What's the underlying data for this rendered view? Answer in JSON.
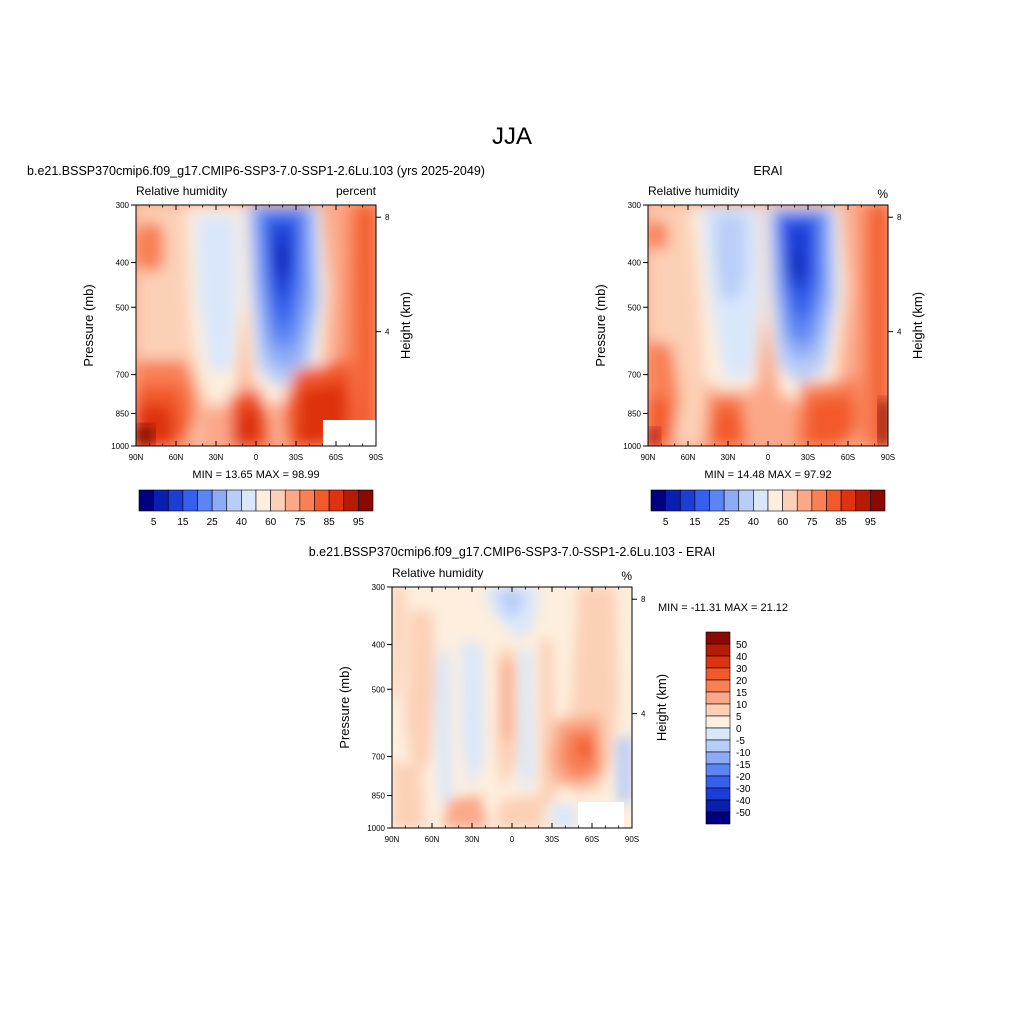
{
  "suptitle": "JJA",
  "x_ticks": [
    "90N",
    "60N",
    "30N",
    "0",
    "30S",
    "60S",
    "90S"
  ],
  "p_ticks": [
    "300",
    "400",
    "500",
    "700",
    "850",
    "1000"
  ],
  "h_ticks": [
    "8",
    "4"
  ],
  "ylabel_left": "Pressure (mb)",
  "ylabel_right": "Height (km)",
  "var_label": "Relative humidity",
  "abs_colorbar": {
    "colors": [
      "#00007f",
      "#0a1fb0",
      "#1a3ed6",
      "#3660ec",
      "#5b85f3",
      "#8caaf6",
      "#b8cdf8",
      "#d9e7fb",
      "#fdeedd",
      "#fcd0b6",
      "#fba889",
      "#f88054",
      "#f25a2c",
      "#de3311",
      "#b51c07",
      "#8a0a02"
    ],
    "labels": [
      "5",
      "15",
      "25",
      "40",
      "60",
      "75",
      "85",
      "95"
    ]
  },
  "diff_colorbar": {
    "colors": [
      "#00007f",
      "#0a1fb0",
      "#1a3ed6",
      "#3660ec",
      "#5b85f3",
      "#8caaf6",
      "#b8cdf8",
      "#d9e7fb",
      "#fdeedd",
      "#fcd0b6",
      "#fba889",
      "#f88054",
      "#f25a2c",
      "#de3311",
      "#b51c07",
      "#8a0a02"
    ],
    "labels": [
      "50",
      "40",
      "30",
      "20",
      "15",
      "10",
      "5",
      "0",
      "-5",
      "-10",
      "-15",
      "-20",
      "-30",
      "-40",
      "-50"
    ]
  },
  "chart_data": [
    {
      "type": "heatmap",
      "title": "b.e21.BSSP370cmip6.f09_g17.CMIP6-SSP3-7.0-SSP1-2.6Lu.103 (yrs 2025-2049)",
      "left_label": "Relative humidity",
      "units": "percent",
      "stats": "MIN =  13.65  MAX =  98.99",
      "min": 13.65,
      "max": 98.99,
      "x_axis": [
        "90N",
        "60N",
        "30N",
        "0",
        "30S",
        "60S",
        "90S"
      ],
      "y_axis_pressure_mb": [
        300,
        400,
        500,
        700,
        850,
        1000
      ],
      "y_axis_height_km": [
        8,
        4
      ]
    },
    {
      "type": "heatmap",
      "title": "ERAI",
      "left_label": "Relative humidity",
      "units": "%",
      "stats": "MIN =  14.48  MAX =  97.92",
      "min": 14.48,
      "max": 97.92,
      "x_axis": [
        "90N",
        "60N",
        "30N",
        "0",
        "30S",
        "60S",
        "90S"
      ],
      "y_axis_pressure_mb": [
        300,
        400,
        500,
        700,
        850,
        1000
      ],
      "y_axis_height_km": [
        8,
        4
      ]
    },
    {
      "type": "heatmap",
      "title": "b.e21.BSSP370cmip6.f09_g17.CMIP6-SSP3-7.0-SSP1-2.6Lu.103 - ERAI",
      "left_label": "Relative humidity",
      "units": "%",
      "stats": "MIN = -11.31  MAX =  21.12",
      "min": -11.31,
      "max": 21.12,
      "x_axis": [
        "90N",
        "60N",
        "30N",
        "0",
        "30S",
        "60S",
        "90S"
      ],
      "y_axis_pressure_mb": [
        300,
        400,
        500,
        700,
        850,
        1000
      ],
      "y_axis_height_km": [
        8,
        4
      ]
    }
  ]
}
